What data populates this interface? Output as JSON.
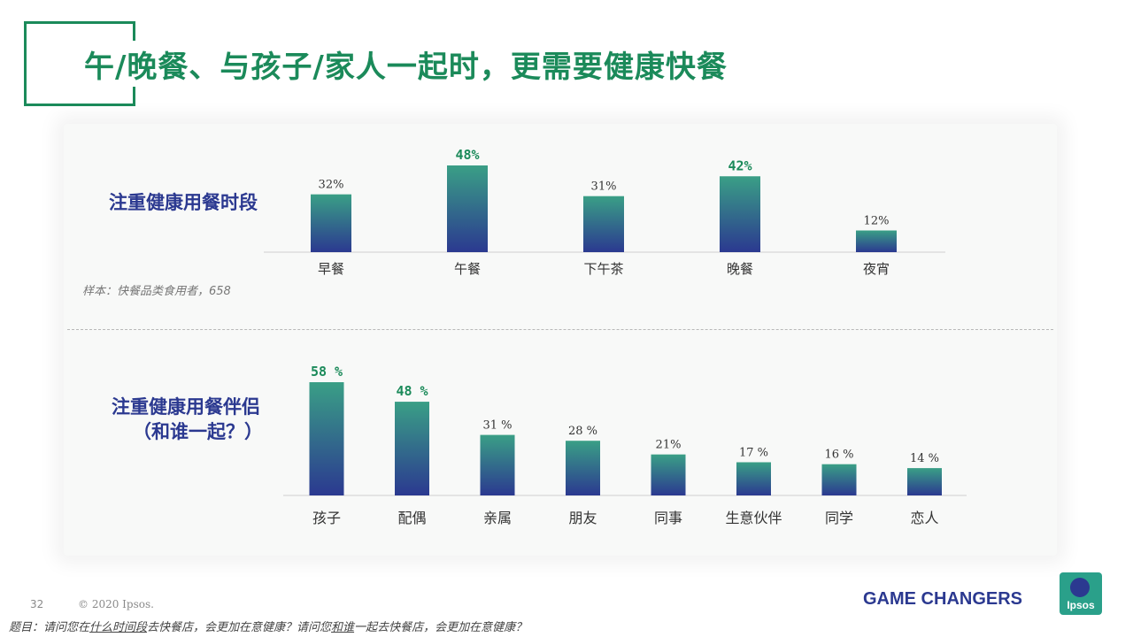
{
  "title": "午/晚餐、与孩子/家人一起时，更需要健康快餐",
  "colors": {
    "accent": "#1b8a5a",
    "navy": "#2b3990",
    "bar_top": "#3a9f86",
    "bar_bottom": "#2b3990",
    "highlight_label": "#1b8a5a"
  },
  "sections": {
    "time": {
      "label": "注重健康用餐时段",
      "sample": "样本：快餐品类食用者，658"
    },
    "companion": {
      "label_line1": "注重健康用餐伴侣",
      "label_line2": "（和谁一起？）"
    }
  },
  "chart_data": [
    {
      "type": "bar",
      "title": "注重健康用餐时段",
      "categories": [
        "早餐",
        "午餐",
        "下午茶",
        "晚餐",
        "夜宵"
      ],
      "values": [
        32,
        48,
        31,
        42,
        12
      ],
      "value_labels": [
        "32%",
        "48%",
        "31%",
        "42%",
        "12%"
      ],
      "highlighted": [
        false,
        true,
        false,
        true,
        false
      ],
      "unit": "%"
    },
    {
      "type": "bar",
      "title": "注重健康用餐伴侣",
      "categories": [
        "孩子",
        "配偶",
        "亲属",
        "朋友",
        "同事",
        "生意伙伴",
        "同学",
        "恋人"
      ],
      "values": [
        58,
        48,
        31,
        28,
        21,
        17,
        16,
        14
      ],
      "value_labels": [
        "58 %",
        "48 %",
        "31 %",
        "28 %",
        "21%",
        "17 %",
        "16 %",
        "14 %"
      ],
      "highlighted": [
        true,
        true,
        false,
        false,
        false,
        false,
        false,
        false
      ],
      "unit": "%"
    }
  ],
  "footer": {
    "page_number": "32",
    "copyright": "© 2020 Ipsos.",
    "question_parts": [
      "题目：请问您在",
      "什么时间段",
      "去快餐店，会更加在意健康？请问您",
      "和谁",
      "一起去快餐店，会更加在意健康？"
    ],
    "tagline": "GAME CHANGERS",
    "logo_text": "Ipsos"
  }
}
